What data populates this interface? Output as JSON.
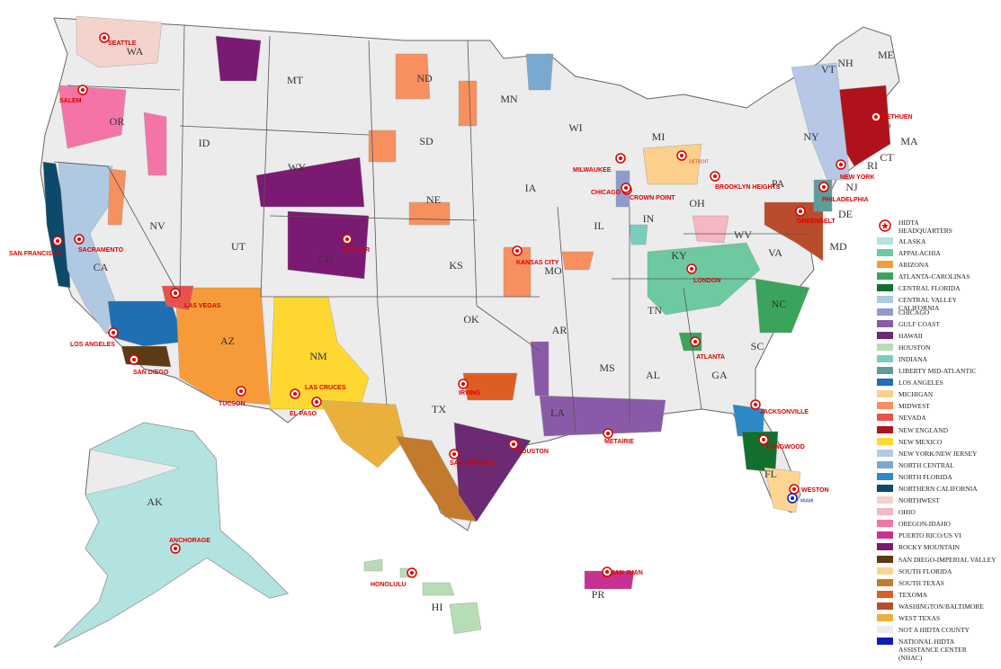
{
  "states": [
    "WA",
    "OR",
    "ID",
    "MT",
    "ND",
    "MN",
    "WI",
    "MI",
    "NY",
    "VT",
    "NH",
    "ME",
    "MA",
    "RI",
    "CT",
    "NJ",
    "DE",
    "MD",
    "PA",
    "OH",
    "IN",
    "IL",
    "IA",
    "SD",
    "WY",
    "NE",
    "NV",
    "CA",
    "UT",
    "CO",
    "KS",
    "MO",
    "KY",
    "WV",
    "VA",
    "NC",
    "TN",
    "SC",
    "GA",
    "AL",
    "MS",
    "AR",
    "LA",
    "OK",
    "TX",
    "NM",
    "AZ",
    "FL",
    "AK",
    "HI",
    "PR"
  ],
  "headquarters": [
    "SEATTLE",
    "SALEM",
    "SAN FRANCISCO",
    "SACRAMENTO",
    "LOS ANGELES",
    "SAN DIEGO",
    "LAS VEGAS",
    "TUCSON",
    "EL PASO",
    "LAS CRUCES",
    "DENVER",
    "KANSAS CITY",
    "IRVING",
    "SAN ANTONIO",
    "HOUSTON",
    "METAIRIE",
    "ATLANTA",
    "LONDON",
    "JACKSONVILLE",
    "LONGWOOD",
    "WESTON",
    "MIAMI",
    "MILWAUKEE",
    "CHICAGO",
    "CROWN POINT",
    "DETROIT",
    "BROOKLYN HEIGHTS",
    "PHILADELPHIA",
    "GREENBELT",
    "NEW YORK",
    "METHUEN",
    "ANCHORAGE",
    "HONOLULU",
    "SAN JUAN"
  ],
  "legend": {
    "title": "HIDTA HEADQUARTERS",
    "items": [
      {
        "label": "ALASKA",
        "color": "#b3e3e0"
      },
      {
        "label": "APPALACHIA",
        "color": "#6cc9a0"
      },
      {
        "label": "ARIZONA",
        "color": "#f79b3a"
      },
      {
        "label": "ATLANTA-CAROLINAS",
        "color": "#3aa45c"
      },
      {
        "label": "CENTRAL FLORIDA",
        "color": "#11702e"
      },
      {
        "label": "CENTRAL VALLEY CALIFORNIA",
        "color": "#b0c9e3"
      },
      {
        "label": "CHICAGO",
        "color": "#8d9ccc"
      },
      {
        "label": "GULF COAST",
        "color": "#8a5aa8"
      },
      {
        "label": "HAWAII",
        "color": "#6b2a72"
      },
      {
        "label": "HOUSTON",
        "color": "#b6ddb4"
      },
      {
        "label": "INDIANA",
        "color": "#79cdbf"
      },
      {
        "label": "LIBERTY MID-ATLANTIC",
        "color": "#5e9c9c"
      },
      {
        "label": "LOS ANGELES",
        "color": "#1f6fb2"
      },
      {
        "label": "MICHIGAN",
        "color": "#fccf8a"
      },
      {
        "label": "MIDWEST",
        "color": "#f7905e"
      },
      {
        "label": "NEVADA",
        "color": "#e8524a"
      },
      {
        "label": "NEW ENGLAND",
        "color": "#b0121c"
      },
      {
        "label": "NEW MEXICO",
        "color": "#fed730"
      },
      {
        "label": "NEW YORK/NEW JERSEY",
        "color": "#b6c8e6"
      },
      {
        "label": "NORTH CENTRAL",
        "color": "#7aa9d0"
      },
      {
        "label": "NORTH FLORIDA",
        "color": "#2c89c6"
      },
      {
        "label": "NORTHERN CALIFORNIA",
        "color": "#0d4a6a"
      },
      {
        "label": "NORTHWEST",
        "color": "#f3d3cb"
      },
      {
        "label": "OHIO",
        "color": "#f6b7c2"
      },
      {
        "label": "OREGON-IDAHO",
        "color": "#f474a8"
      },
      {
        "label": "PUERTO RICO/US VI",
        "color": "#c6328f"
      },
      {
        "label": "ROCKY MOUNTAIN",
        "color": "#7b1a73"
      },
      {
        "label": "SAN DIEGO-IMPERIAL VALLEY",
        "color": "#5c3a14"
      },
      {
        "label": "SOUTH FLORIDA",
        "color": "#fcd592"
      },
      {
        "label": "SOUTH TEXAS",
        "color": "#c47a2e"
      },
      {
        "label": "TEXOMA",
        "color": "#dd5e22"
      },
      {
        "label": "WASHINGTON/BALTIMORE",
        "color": "#b84c2c"
      },
      {
        "label": "WEST TEXAS",
        "color": "#ebb03c"
      },
      {
        "label": "NOT A HIDTA COUNTY",
        "color": "#ececec"
      },
      {
        "label": "NATIONAL HIDTA ASSISTANCE CENTER (NHAC)",
        "color": "#0b1fb5"
      }
    ]
  }
}
